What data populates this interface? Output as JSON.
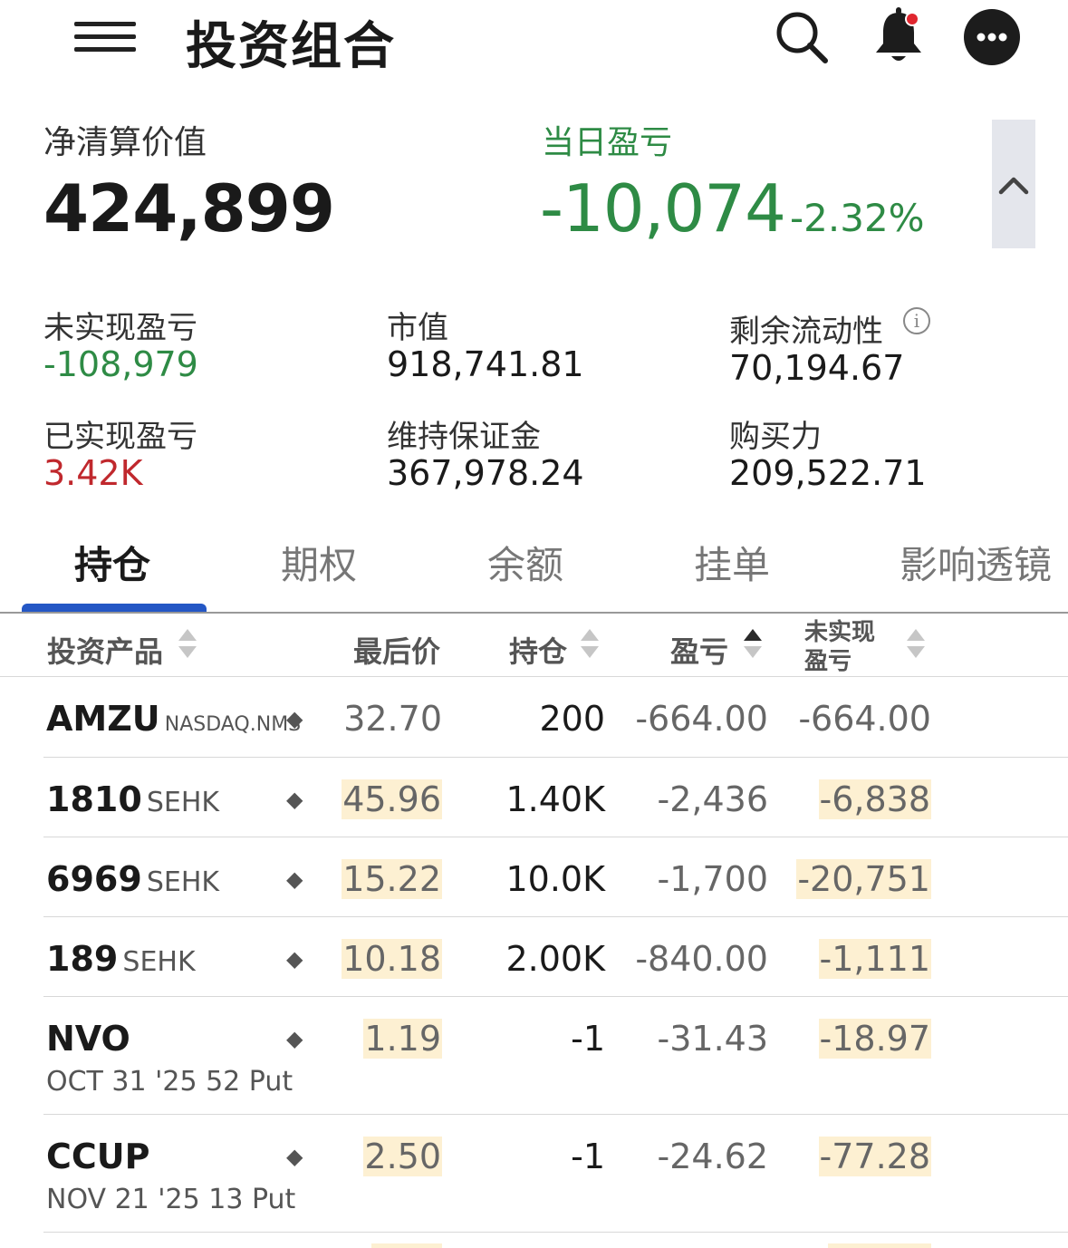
{
  "header": {
    "title": "投资组合",
    "icons": [
      "menu-icon",
      "search-icon",
      "bell-icon",
      "more-icon"
    ]
  },
  "summary": {
    "nlv_label": "净清算价值",
    "nlv_value": "424,899",
    "daily_pnl_label": "当日盈亏",
    "daily_pnl_value": "-10,074",
    "daily_pnl_pct": "-2.32%",
    "collapse_icon": "chevron-up-icon",
    "stats": {
      "unrealized_label": "未实现盈亏",
      "unrealized_value": "-108,979",
      "market_value_label": "市值",
      "market_value": "918,741.81",
      "excess_liquidity_label": "剩余流动性",
      "excess_liquidity_value": "70,194.67",
      "realized_label": "已实现盈亏",
      "realized_value": "3.42K",
      "maint_margin_label": "维持保证金",
      "maint_margin_value": "367,978.24",
      "buying_power_label": "购买力",
      "buying_power_value": "209,522.71"
    }
  },
  "tabs": [
    {
      "label": "持仓",
      "active": true
    },
    {
      "label": "期权",
      "active": false
    },
    {
      "label": "余额",
      "active": false
    },
    {
      "label": "挂单",
      "active": false
    },
    {
      "label": "影响透镜",
      "active": false
    }
  ],
  "table": {
    "headers": {
      "product": "投资产品",
      "last": "最后价",
      "position": "持仓",
      "pnl": "盈亏",
      "unrealized_1": "未实现",
      "unrealized_2": "盈亏"
    },
    "rows": [
      {
        "symbol": "AMZU",
        "exchange": "NASDAQ.NMS",
        "sub": "",
        "last": "32.70",
        "position": "200",
        "pnl": "-664.00",
        "unrealized": "-664.00"
      },
      {
        "symbol": "1810",
        "exchange": "SEHK",
        "sub": "",
        "last": "45.96",
        "position": "1.40K",
        "pnl": "-2,436",
        "unrealized": "-6,838"
      },
      {
        "symbol": "6969",
        "exchange": "SEHK",
        "sub": "",
        "last": "15.22",
        "position": "10.0K",
        "pnl": "-1,700",
        "unrealized": "-20,751"
      },
      {
        "symbol": "189",
        "exchange": "SEHK",
        "sub": "",
        "last": "10.18",
        "position": "2.00K",
        "pnl": "-840.00",
        "unrealized": "-1,111"
      },
      {
        "symbol": "NVO",
        "exchange": "",
        "sub": "OCT 31 '25 52 Put",
        "last": "1.19",
        "position": "-1",
        "pnl": "-31.43",
        "unrealized": "-18.97"
      },
      {
        "symbol": "CCUP",
        "exchange": "",
        "sub": "NOV 21 '25 13 Put",
        "last": "2.50",
        "position": "-1",
        "pnl": "-24.62",
        "unrealized": "-77.28"
      }
    ],
    "row_marker": "◆"
  },
  "colors": {
    "gain_loss_green": "#2e8b45",
    "loss_red": "#c0282d",
    "tab_accent": "#2457c5",
    "highlight": "#fdf0d2",
    "bell_dot": "#e0262f"
  }
}
